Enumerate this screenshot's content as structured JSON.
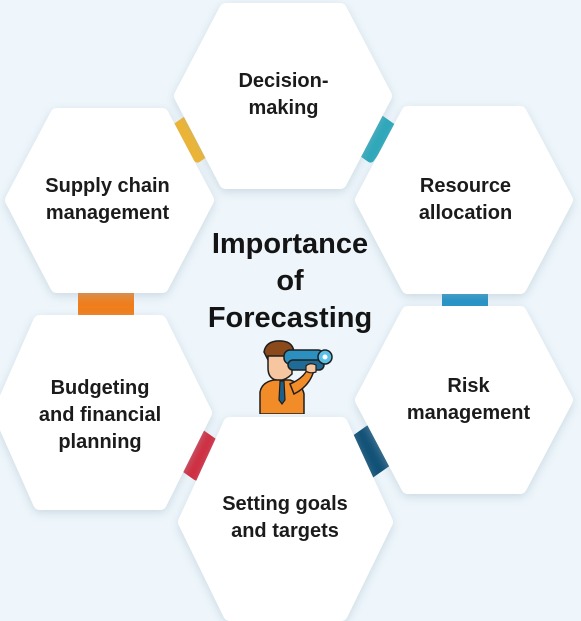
{
  "title": "Importance\nof\nForecasting",
  "items": [
    {
      "label": "Decision-\nmaking",
      "connector_color": "#27a7b9"
    },
    {
      "label": "Resource\nallocation",
      "connector_color": "#1b8fc4"
    },
    {
      "label": "Risk\nmanagement",
      "connector_color": "#0f4f75"
    },
    {
      "label": "Setting goals\nand targets",
      "connector_color": "#d2283b"
    },
    {
      "label": "Budgeting\nand financial\nplanning",
      "connector_color": "#f07d1a"
    },
    {
      "label": "Supply chain\nmanagement",
      "connector_color": "#f4b425"
    }
  ],
  "icon": "person-with-binoculars-icon"
}
